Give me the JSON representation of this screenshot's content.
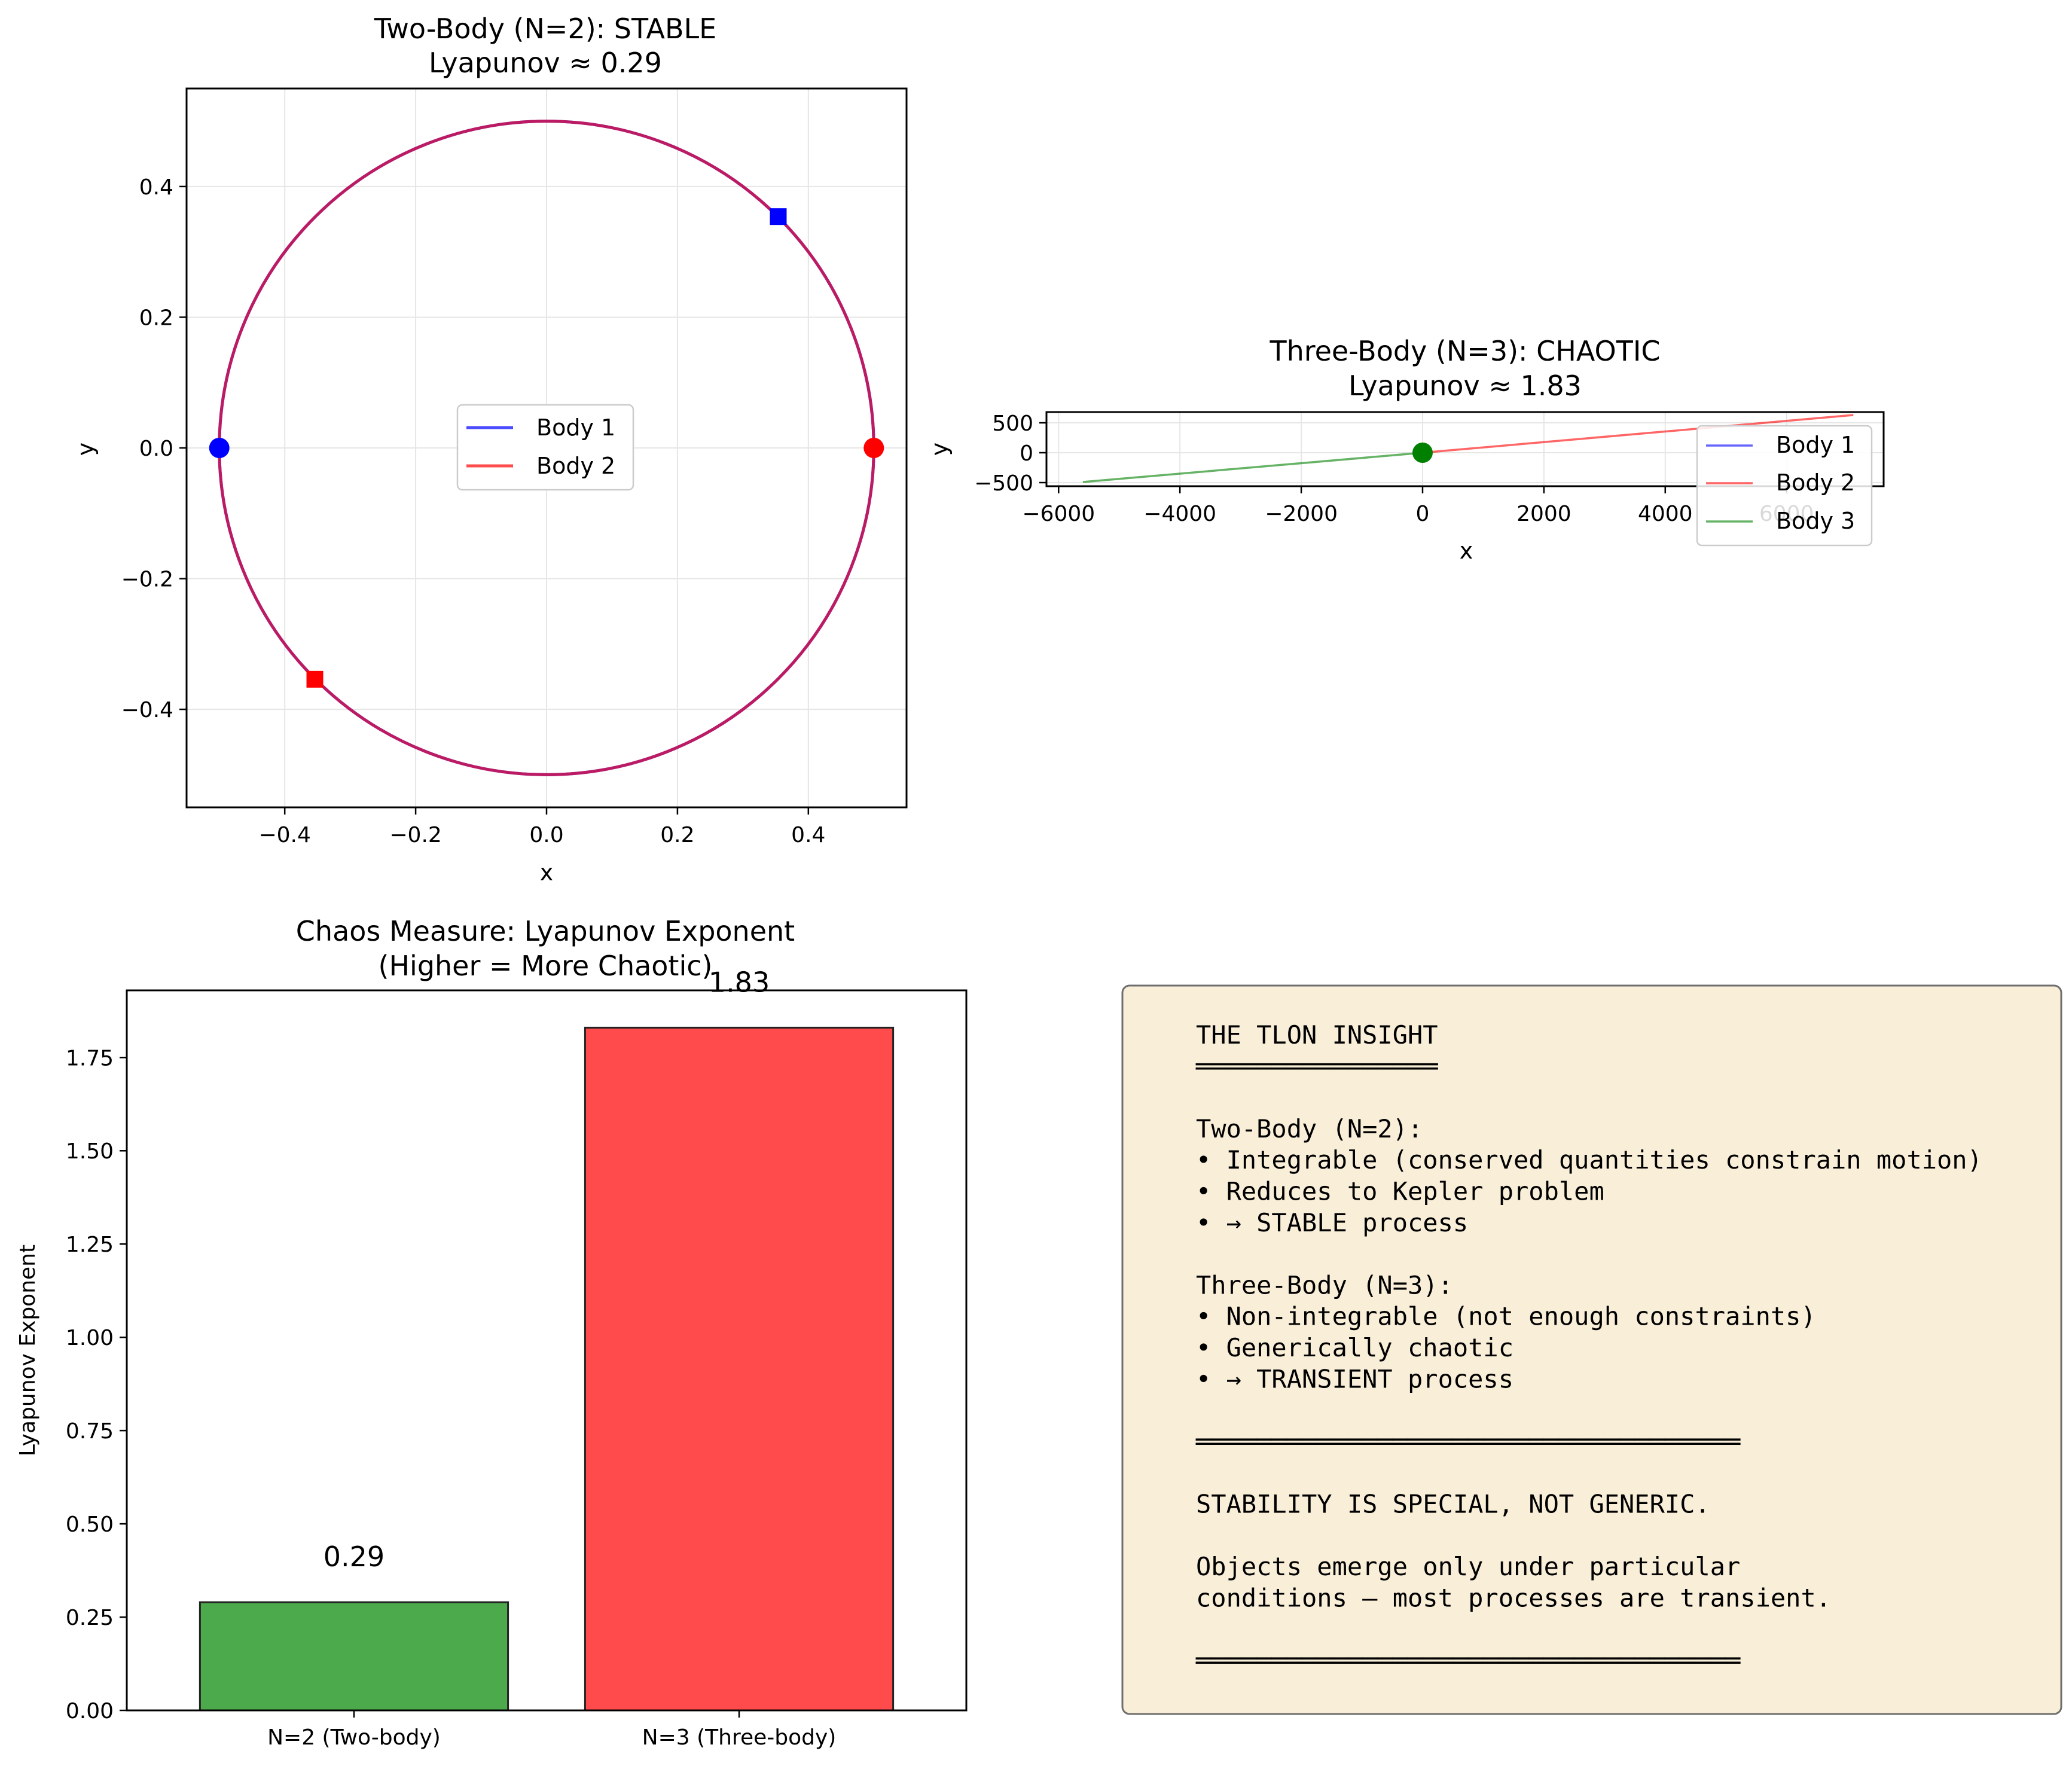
{
  "colors": {
    "body1": "#0000ff",
    "body2": "#ff0000",
    "body3": "#008000",
    "orbit_overlap": "#c2185b",
    "bar_stable": "#4caa4c",
    "bar_chaotic": "#ff4b4b",
    "note_fill": "#f9eed8",
    "note_edge": "#6e6e6e",
    "grid": "#e6e6e6"
  },
  "chart_data": [
    {
      "type": "line",
      "title": "Two-Body (N=2): STABLE",
      "subtitle": "Lyapunov ≈ 0.29",
      "xlabel": "x",
      "ylabel": "y",
      "xlim": [
        -0.55,
        0.55
      ],
      "ylim": [
        -0.55,
        0.55
      ],
      "xticks": [
        -0.4,
        -0.2,
        0.0,
        0.2,
        0.4
      ],
      "yticks": [
        -0.4,
        -0.2,
        0.0,
        0.2,
        0.4
      ],
      "xtick_labels": [
        "−0.4",
        "−0.2",
        "0.0",
        "0.2",
        "0.4"
      ],
      "ytick_labels": [
        "−0.4",
        "−0.2",
        "0.0",
        "0.2",
        "0.4"
      ],
      "grid": true,
      "legend": "center",
      "series": [
        {
          "name": "Body 1",
          "color": "#0000ff",
          "orbit": {
            "shape": "circle",
            "center": [
              0,
              0
            ],
            "radius": 0.5
          },
          "start": [
            -0.5,
            0.0
          ],
          "end": [
            0.354,
            0.354
          ]
        },
        {
          "name": "Body 2",
          "color": "#ff0000",
          "orbit": {
            "shape": "circle",
            "center": [
              0,
              0
            ],
            "radius": 0.5
          },
          "start": [
            0.5,
            0.0
          ],
          "end": [
            -0.354,
            -0.354
          ]
        }
      ]
    },
    {
      "type": "line",
      "title": "Three-Body (N=3): CHAOTIC",
      "subtitle": "Lyapunov ≈ 1.83",
      "xlabel": "x",
      "ylabel": "y",
      "xlim": [
        -6200,
        7600
      ],
      "ylim": [
        -560,
        680
      ],
      "xticks": [
        -6000,
        -4000,
        -2000,
        0,
        2000,
        4000,
        6000
      ],
      "yticks": [
        -500,
        0,
        500
      ],
      "xtick_labels": [
        "−6000",
        "−4000",
        "−2000",
        "0",
        "2000",
        "4000",
        "6000"
      ],
      "ytick_labels": [
        "−500",
        "0",
        "500"
      ],
      "grid": true,
      "legend": "right",
      "series": [
        {
          "name": "Body 1",
          "color": "#0000ff",
          "x": [
            0,
            0
          ],
          "y": [
            0,
            0
          ]
        },
        {
          "name": "Body 2",
          "color": "#ff0000",
          "x": [
            0,
            7100
          ],
          "y": [
            0,
            630
          ]
        },
        {
          "name": "Body 3",
          "color": "#008000",
          "x": [
            0,
            -5600
          ],
          "y": [
            0,
            -490
          ]
        }
      ],
      "markers": [
        {
          "x": 0,
          "y": 0,
          "color": "#008000"
        }
      ]
    },
    {
      "type": "bar",
      "title": "Chaos Measure: Lyapunov Exponent",
      "subtitle": "(Higher = More Chaotic)",
      "xlabel": "",
      "ylabel": "Lyapunov Exponent",
      "categories": [
        "N=2 (Two-body)",
        "N=3 (Three-body)"
      ],
      "values": [
        0.29,
        1.83
      ],
      "value_labels": [
        "0.29",
        "1.83"
      ],
      "ylim": [
        0,
        1.93
      ],
      "yticks": [
        0.0,
        0.25,
        0.5,
        0.75,
        1.0,
        1.25,
        1.5,
        1.75
      ],
      "ytick_labels": [
        "0.00",
        "0.25",
        "0.50",
        "0.75",
        "1.00",
        "1.25",
        "1.50",
        "1.75"
      ],
      "grid": false
    }
  ],
  "insight_note": {
    "lines": [
      "THE TLON INSIGHT",
      "════════════════",
      "",
      "Two-Body (N=2):",
      "• Integrable (conserved quantities constrain motion)",
      "• Reduces to Kepler problem",
      "• → STABLE process",
      "",
      "Three-Body (N=3):",
      "• Non-integrable (not enough constraints)",
      "• Generically chaotic",
      "• → TRANSIENT process",
      "",
      "════════════════════════════════════",
      "",
      "STABILITY IS SPECIAL, NOT GENERIC.",
      "",
      "Objects emerge only under particular",
      "conditions — most processes are transient.",
      "",
      "════════════════════════════════════"
    ]
  }
}
